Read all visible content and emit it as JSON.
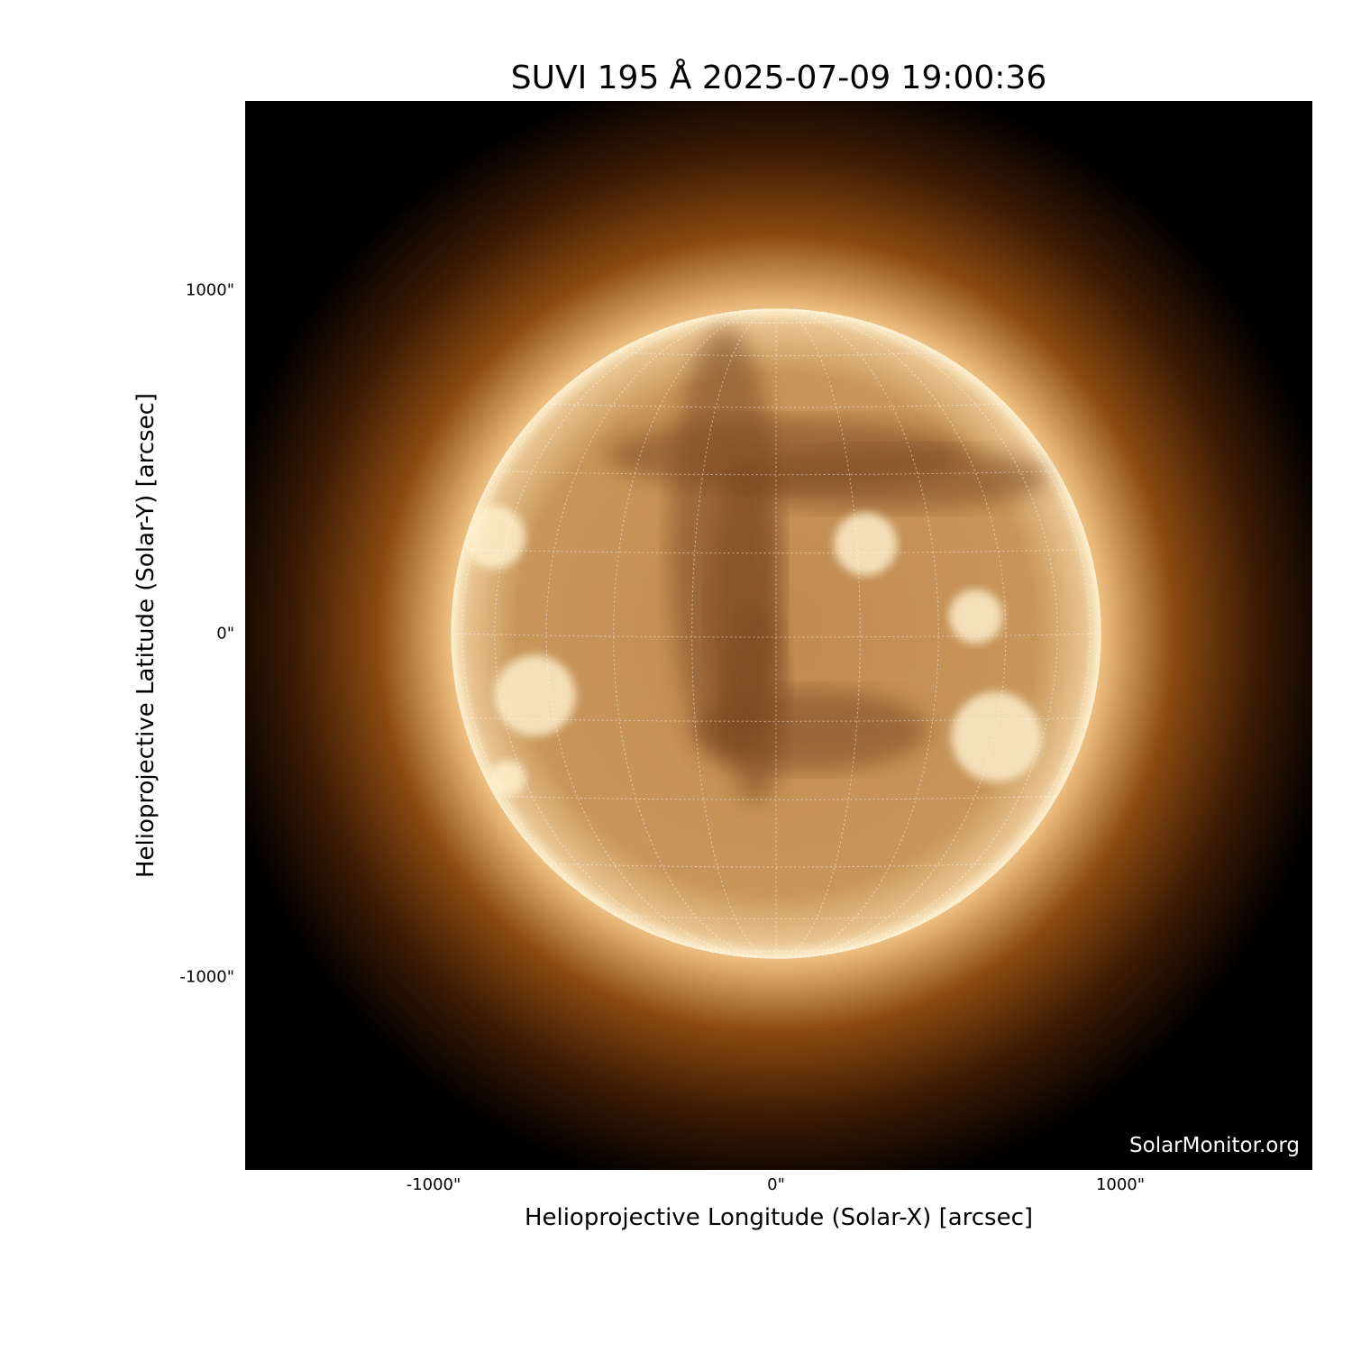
{
  "title": "SUVI 195 Å 2025-07-09 19:00:36",
  "xlabel": "Helioprojective Longitude (Solar-X) [arcsec]",
  "ylabel": "Helioprojective Latitude (Solar-Y) [arcsec]",
  "x_ticks": [
    "-1000\"",
    "0\"",
    "1000\""
  ],
  "y_ticks": [
    "1000\"",
    "0\"",
    "-1000\""
  ],
  "x_tick_values": [
    -1000,
    0,
    1000
  ],
  "y_tick_values": [
    1000,
    0,
    -1000
  ],
  "axis_range_arcsec": {
    "x": [
      -1550,
      1550
    ],
    "y": [
      -1550,
      1550
    ]
  },
  "solar_radius_arcsec": 944,
  "grid_spacing_deg": 15,
  "watermark": "SolarMonitor.org",
  "colors": {
    "background": "#000000",
    "corona": "#8a4a10",
    "disk": "#c8965a",
    "limb": "#fff1d0"
  }
}
